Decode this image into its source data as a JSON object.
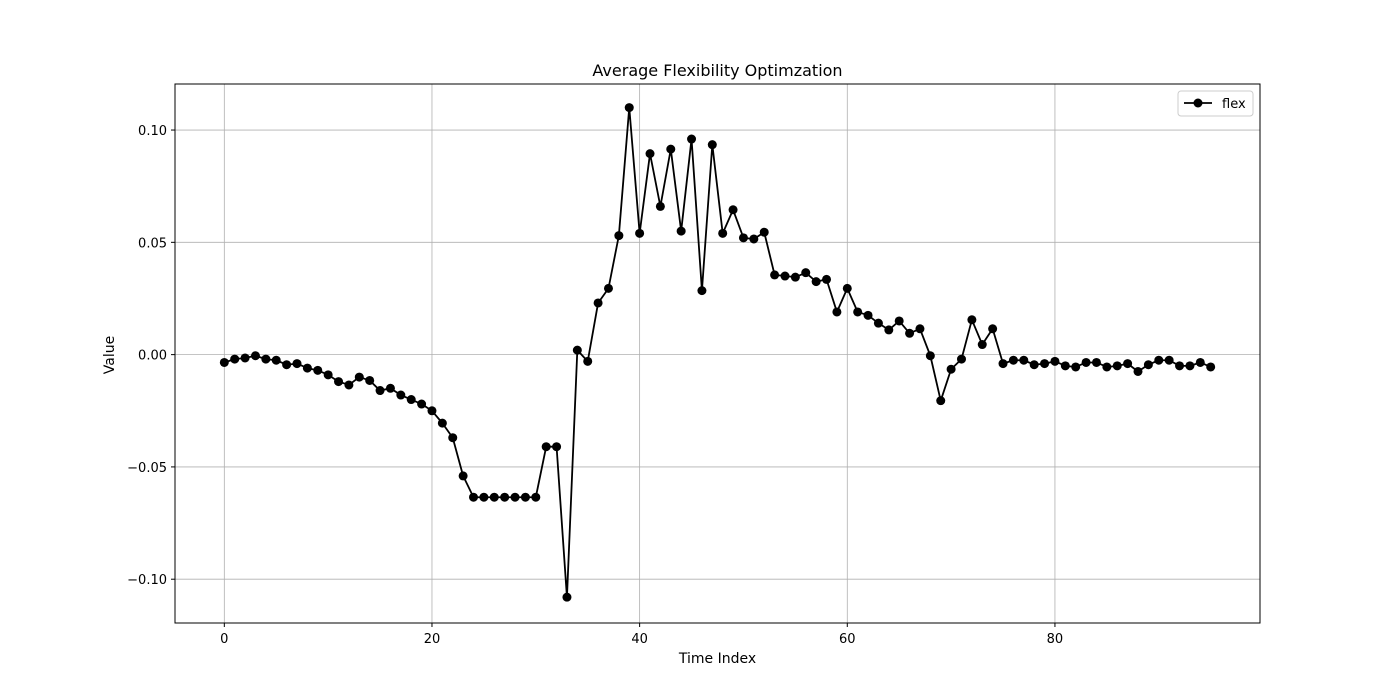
{
  "chart_data": {
    "type": "line",
    "title": "Average Flexibility Optimzation",
    "xlabel": "Time Index",
    "ylabel": "Value",
    "xlim": [
      -4.75,
      99.75
    ],
    "ylim": [
      -0.1195,
      0.1205
    ],
    "x_ticks": [
      0,
      20,
      40,
      60,
      80
    ],
    "x_tick_labels": [
      "0",
      "20",
      "40",
      "60",
      "80"
    ],
    "y_ticks": [
      -0.1,
      -0.05,
      0.0,
      0.05,
      0.1
    ],
    "y_tick_labels": [
      "−0.10",
      "−0.05",
      "0.00",
      "0.05",
      "0.10"
    ],
    "grid": true,
    "legend_position": "top-right",
    "series": [
      {
        "name": "flex",
        "color": "#000000",
        "marker": "circle",
        "x": [
          0,
          1,
          2,
          3,
          4,
          5,
          6,
          7,
          8,
          9,
          10,
          11,
          12,
          13,
          14,
          15,
          16,
          17,
          18,
          19,
          20,
          21,
          22,
          23,
          24,
          25,
          26,
          27,
          28,
          29,
          30,
          31,
          32,
          33,
          34,
          35,
          36,
          37,
          38,
          39,
          40,
          41,
          42,
          43,
          44,
          45,
          46,
          47,
          48,
          49,
          50,
          51,
          52,
          53,
          54,
          55,
          56,
          57,
          58,
          59,
          60,
          61,
          62,
          63,
          64,
          65,
          66,
          67,
          68,
          69,
          70,
          71,
          72,
          73,
          74,
          75,
          76,
          77,
          78,
          79,
          80,
          81,
          82,
          83,
          84,
          85,
          86,
          87,
          88,
          89,
          90,
          91,
          92,
          93,
          94,
          95
        ],
        "values": [
          -0.0035,
          -0.002,
          -0.0015,
          -0.0005,
          -0.002,
          -0.0025,
          -0.0045,
          -0.004,
          -0.006,
          -0.007,
          -0.009,
          -0.012,
          -0.0135,
          -0.01,
          -0.0115,
          -0.016,
          -0.015,
          -0.018,
          -0.02,
          -0.022,
          -0.025,
          -0.0305,
          -0.037,
          -0.054,
          -0.0635,
          -0.0635,
          -0.0635,
          -0.0635,
          -0.0635,
          -0.0635,
          -0.0635,
          -0.041,
          -0.041,
          -0.108,
          0.002,
          -0.003,
          0.023,
          0.0295,
          0.053,
          0.11,
          0.054,
          0.0895,
          0.066,
          0.0915,
          0.055,
          0.096,
          0.0285,
          0.0935,
          0.054,
          0.0645,
          0.052,
          0.0515,
          0.0545,
          0.0355,
          0.035,
          0.0345,
          0.0365,
          0.0325,
          0.0335,
          0.019,
          0.0295,
          0.019,
          0.0175,
          0.014,
          0.011,
          0.015,
          0.0095,
          0.0115,
          -0.0005,
          -0.0205,
          -0.0065,
          -0.002,
          0.0155,
          0.0045,
          0.0115,
          -0.004,
          -0.0025,
          -0.0025,
          -0.0045,
          -0.004,
          -0.003,
          -0.005,
          -0.0055,
          -0.0035,
          -0.0035,
          -0.0055,
          -0.005,
          -0.004,
          -0.0075,
          -0.0045,
          -0.0025,
          -0.0025,
          -0.005,
          -0.005,
          -0.0035,
          -0.0055
        ]
      }
    ]
  }
}
